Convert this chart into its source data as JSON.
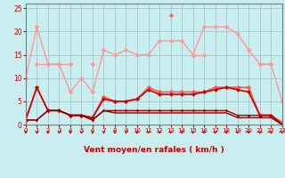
{
  "x": [
    0,
    1,
    2,
    3,
    4,
    5,
    6,
    7,
    8,
    9,
    10,
    11,
    12,
    13,
    14,
    15,
    16,
    17,
    18,
    19,
    20,
    21,
    22,
    23
  ],
  "series": [
    {
      "color": "#FF9999",
      "values": [
        10,
        21,
        13,
        13,
        7,
        10,
        7,
        16,
        15,
        16,
        15,
        15,
        18,
        18,
        18,
        15,
        21,
        21,
        21,
        19.5,
        16,
        13,
        13,
        5
      ],
      "marker": "D",
      "markersize": 2.5,
      "lw": 1.0
    },
    {
      "color": "#FF9999",
      "values": [
        null,
        13,
        13,
        13,
        13,
        null,
        13,
        null,
        null,
        null,
        null,
        null,
        null,
        null,
        null,
        15,
        15,
        null,
        null,
        null,
        null,
        13,
        13,
        null
      ],
      "marker": "D",
      "markersize": 2.5,
      "lw": 1.0
    },
    {
      "color": "#FF6666",
      "values": [
        null,
        null,
        null,
        null,
        null,
        null,
        null,
        null,
        null,
        null,
        null,
        null,
        null,
        23.5,
        null,
        null,
        null,
        null,
        null,
        null,
        null,
        null,
        null,
        null
      ],
      "marker": "D",
      "markersize": 2.5,
      "lw": 1.0
    },
    {
      "color": "#FF5555",
      "values": [
        1,
        8,
        3,
        3,
        2,
        2,
        1.5,
        6,
        5,
        5,
        5.5,
        8,
        7,
        7,
        7,
        7,
        7,
        8,
        8,
        8,
        8,
        2,
        2,
        0.5
      ],
      "marker": "D",
      "markersize": 2.5,
      "lw": 1.2
    },
    {
      "color": "#CC0000",
      "values": [
        1,
        8,
        3,
        3,
        2,
        2,
        1.5,
        5.5,
        5,
        5,
        5.5,
        7.5,
        6.5,
        6.5,
        6.5,
        6.5,
        7,
        7.5,
        8,
        7.5,
        7,
        2,
        2,
        0
      ],
      "marker": "D",
      "markersize": 2.0,
      "lw": 1.2
    },
    {
      "color": "#AA0000",
      "values": [
        1,
        1,
        3,
        3,
        2,
        2,
        1,
        3,
        3,
        3,
        3,
        3,
        3,
        3,
        3,
        3,
        3,
        3,
        3,
        2,
        2,
        2,
        2,
        0
      ],
      "marker": "D",
      "markersize": 1.5,
      "lw": 1.0
    },
    {
      "color": "#880000",
      "values": [
        1,
        1,
        3,
        3,
        2,
        2,
        1,
        3,
        2.5,
        2.5,
        2.5,
        2.5,
        2.5,
        2.5,
        2.5,
        2.5,
        2.5,
        2.5,
        2.5,
        1.5,
        1.5,
        1.5,
        1.5,
        0
      ],
      "marker": null,
      "markersize": 0,
      "lw": 1.0
    }
  ],
  "xlabel": "Vent moyen/en rafales ( km/h )",
  "ylim": [
    0,
    26
  ],
  "xlim": [
    0,
    23
  ],
  "yticks": [
    0,
    5,
    10,
    15,
    20,
    25
  ],
  "xticks": [
    0,
    1,
    2,
    3,
    4,
    5,
    6,
    7,
    8,
    9,
    10,
    11,
    12,
    13,
    14,
    15,
    16,
    17,
    18,
    19,
    20,
    21,
    22,
    23
  ],
  "bg_color": "#C8EEF0",
  "grid_color": "#A0BCC0",
  "arrow_color": "#CC0000",
  "label_color": "#CC0000",
  "spine_color": "#708080"
}
